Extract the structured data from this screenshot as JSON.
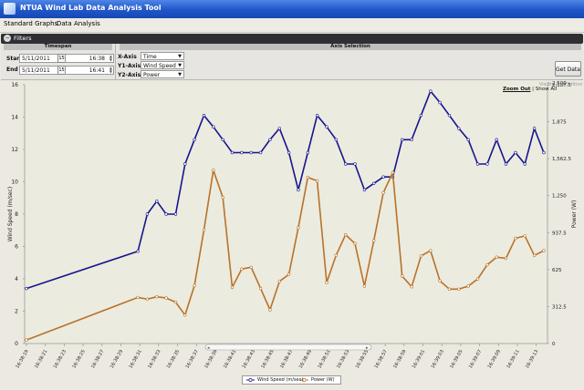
{
  "app": {
    "title": "NTUA Wind Lab Data Analysis Tool"
  },
  "menu": {
    "items": [
      "Standard Graphs",
      "Data Analysis"
    ]
  },
  "filters": {
    "header": "Filters",
    "toggle_glyph": "−",
    "timespan": {
      "header": "Timespan",
      "start_label": "Start",
      "end_label": "End",
      "start_date": "5/11/2011",
      "start_time": "16:38",
      "end_date": "5/11/2011",
      "end_time": "16:41",
      "calendar_glyph": "15"
    },
    "axis_selection": {
      "header": "Axis Selection",
      "x_label": "X-Axis",
      "y1_label": "Y1-Axis",
      "y2_label": "Y2-Axis",
      "x_value": "Time",
      "y1_value": "Wind Speed",
      "y2_value": "Power"
    },
    "get_data_label": "Get Data"
  },
  "chart_controls": {
    "zoom_out": "Zoom Out",
    "separator": "|",
    "show_all": "Show All",
    "watermark": "Visifire Trial Edition"
  },
  "scrollbar": {
    "left_arrow": "◂",
    "right_arrow": "▸"
  },
  "colors": {
    "wind_series": "#15158f",
    "power_series": "#b8722a",
    "title_bar": "#2359c9",
    "plot_bg": "#ecebdf"
  },
  "chart_data": {
    "type": "line",
    "x": [
      "16:38:19",
      "16:38:21",
      "16:38:23",
      "16:38:25",
      "16:38:27",
      "16:38:29",
      "16:38:31",
      "16:38:33",
      "16:38:35",
      "16:38:37",
      "16:38:39",
      "16:38:41",
      "16:38:43",
      "16:38:45",
      "16:38:47",
      "16:38:49",
      "16:38:51",
      "16:38:53",
      "16:38:55",
      "16:38:57",
      "16:38:59",
      "16:39:01",
      "16:39:03",
      "16:39:05",
      "16:39:07",
      "16:39:09",
      "16:39:11",
      "16:39:13",
      "16:39:15",
      "16:39:17",
      "16:39:19",
      "16:39:21",
      "16:39:23",
      "16:39:25",
      "16:39:27",
      "16:39:29",
      "16:39:31",
      "16:39:33",
      "16:39:35",
      "16:39:37",
      "16:39:39",
      "16:39:41",
      "16:39:43",
      "16:39:45",
      "16:39:47",
      "16:39:49",
      "16:39:51",
      "16:39:53",
      "16:39:55",
      "16:39:57",
      "16:39:59",
      "16:40:01",
      "16:40:03",
      "16:40:05",
      "16:40:07",
      "16:40:09"
    ],
    "x_tick_labels": [
      "16:38:19",
      "16:38:21",
      "16:38:23",
      "16:38:25",
      "16:38:27",
      "16:38:29",
      "16:38:31",
      "16:38:33",
      "16:38:35",
      "16:38:37",
      "16:38:39",
      "16:38:41",
      "16:38:43",
      "16:38:45",
      "16:38:47",
      "16:38:49",
      "16:38:51",
      "16:38:53",
      "16:38:55",
      "16:38:57",
      "16:38:59",
      "16:39:01",
      "16:39:03",
      "16:39:05",
      "16:39:07",
      "16:39:09",
      "16:39:11",
      "16:39:13",
      "16:39:15",
      "16:39:17",
      "16:39:19",
      "16:39:21",
      "16:39:23",
      "16:39:25",
      "16:39:27",
      "16:39:29",
      "16:39:31",
      "16:39:33",
      "16:39:35",
      "16:39:37",
      "16:39:39",
      "16:39:41",
      "16:39:43",
      "16:39:45",
      "16:39:47",
      "16:39:49",
      "16:39:51",
      "16:39:53",
      "16:39:55",
      "16:39:57",
      "16:39:59",
      "16:40:01",
      "16:40:03",
      "16:40:05",
      "16:40:07",
      "16:40:09"
    ],
    "series": [
      {
        "name": "Wind Speed (m/sec)",
        "axis": "y1",
        "color": "#15158f",
        "points": [
          [
            0,
            3.4
          ],
          [
            11.8,
            5.7
          ],
          [
            12.8,
            8.0
          ],
          [
            13.8,
            8.8
          ],
          [
            14.8,
            8.0
          ],
          [
            15.8,
            8.0
          ],
          [
            16.8,
            11.1
          ],
          [
            17.8,
            12.6
          ],
          [
            18.8,
            14.1
          ],
          [
            19.8,
            13.4
          ],
          [
            20.8,
            12.6
          ],
          [
            21.8,
            11.8
          ],
          [
            22.8,
            11.8
          ],
          [
            23.8,
            11.8
          ],
          [
            24.8,
            11.8
          ],
          [
            25.8,
            12.6
          ],
          [
            26.8,
            13.3
          ],
          [
            27.8,
            11.8
          ],
          [
            28.8,
            9.5
          ],
          [
            29.8,
            11.8
          ],
          [
            30.8,
            14.1
          ],
          [
            31.8,
            13.4
          ],
          [
            32.8,
            12.6
          ],
          [
            33.8,
            11.1
          ],
          [
            34.8,
            11.1
          ],
          [
            35.8,
            9.5
          ],
          [
            36.8,
            9.9
          ],
          [
            37.8,
            10.3
          ],
          [
            38.8,
            10.3
          ],
          [
            39.8,
            12.6
          ],
          [
            40.8,
            12.6
          ],
          [
            41.8,
            14.1
          ],
          [
            42.8,
            15.6
          ],
          [
            43.8,
            14.9
          ],
          [
            44.8,
            14.1
          ],
          [
            45.8,
            13.3
          ],
          [
            46.8,
            12.6
          ],
          [
            47.8,
            11.1
          ],
          [
            48.8,
            11.1
          ],
          [
            49.8,
            12.6
          ],
          [
            50.8,
            11.1
          ],
          [
            51.8,
            11.8
          ],
          [
            52.8,
            11.1
          ],
          [
            53.8,
            13.3
          ],
          [
            54.8,
            11.8
          ]
        ]
      },
      {
        "name": "Power (W)",
        "axis": "y2",
        "color": "#b8722a",
        "points": [
          [
            0,
            30
          ],
          [
            11.8,
            390
          ],
          [
            12.8,
            375
          ],
          [
            13.8,
            395
          ],
          [
            14.8,
            385
          ],
          [
            15.8,
            350
          ],
          [
            16.8,
            240
          ],
          [
            17.8,
            490
          ],
          [
            18.8,
            960
          ],
          [
            19.8,
            1465
          ],
          [
            20.8,
            1235
          ],
          [
            21.8,
            475
          ],
          [
            22.8,
            630
          ],
          [
            23.8,
            645
          ],
          [
            24.8,
            465
          ],
          [
            25.8,
            285
          ],
          [
            26.8,
            525
          ],
          [
            27.8,
            585
          ],
          [
            28.8,
            980
          ],
          [
            29.8,
            1405
          ],
          [
            30.8,
            1375
          ],
          [
            31.8,
            515
          ],
          [
            32.8,
            745
          ],
          [
            33.8,
            920
          ],
          [
            34.8,
            845
          ],
          [
            35.8,
            485
          ],
          [
            36.8,
            870
          ],
          [
            37.8,
            1275
          ],
          [
            38.8,
            1445
          ],
          [
            39.8,
            570
          ],
          [
            40.8,
            480
          ],
          [
            41.8,
            740
          ],
          [
            42.8,
            785
          ],
          [
            43.8,
            530
          ],
          [
            44.8,
            460
          ],
          [
            45.8,
            460
          ],
          [
            46.8,
            485
          ],
          [
            47.8,
            545
          ],
          [
            48.8,
            665
          ],
          [
            49.8,
            730
          ],
          [
            50.8,
            720
          ],
          [
            51.8,
            890
          ],
          [
            52.8,
            910
          ],
          [
            53.8,
            745
          ],
          [
            54.8,
            785
          ]
        ]
      }
    ],
    "y1": {
      "label": "Wind Speed (m/sec)",
      "range": [
        0,
        16
      ],
      "ticks": [
        0,
        2,
        4,
        6,
        8,
        10,
        12,
        14,
        16
      ]
    },
    "y2": {
      "label": "Power (W)",
      "range": [
        0,
        2187.5
      ],
      "ticks": [
        "0",
        "312.5",
        "625",
        "937.5",
        "1,250",
        "1,562.5",
        "1,875",
        "2,187.5",
        "2,500"
      ]
    },
    "legend": {
      "position": "bottom"
    },
    "grid": false
  }
}
